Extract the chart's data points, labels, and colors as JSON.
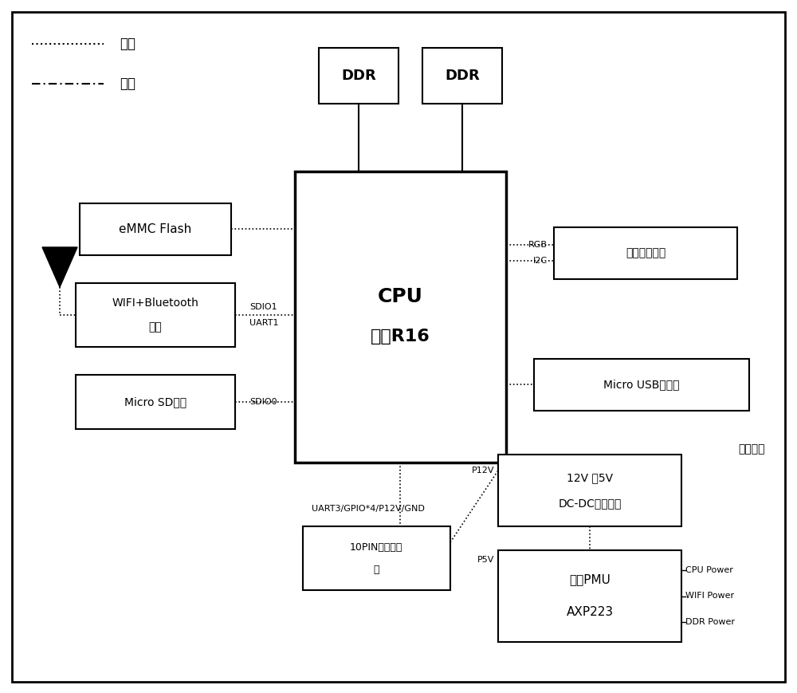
{
  "bg_color": "#ffffff",
  "legend_signal_label": "信号",
  "legend_power_label": "电源",
  "cpu_label_line1": "CPU",
  "cpu_label_line2": "全志R16",
  "ddr1_label": "DDR",
  "ddr2_label": "DDR",
  "emmc_label": "eMMC Flash",
  "wifi_label_line1": "WIFI+Bluetooth",
  "wifi_label_line2": "模块",
  "sd_label": "Micro SD卡槽",
  "display_label": "显示器连接器",
  "usb_label": "Micro USB连接器",
  "connector_label_line1": "10PIN板卡连接",
  "connector_label_line2": "器",
  "dc_label_line1": "12V 转5V",
  "dc_label_line2": "DC-DC电源模块",
  "pmu_label_line1": "全志PMU",
  "pmu_label_line2": "AXP223",
  "power_area_label": "主板电源",
  "rgb_label": "RGB",
  "i2c_label": "I2C",
  "sdio1_label": "SDIO1",
  "uart1_label": "UART1",
  "sdio0_label": "SDIO0",
  "uart3_label": "UART3/GPIO*4/P12V/GND",
  "p12v_label": "P12V",
  "p5v_label": "P5V",
  "cpu_power_label": "CPU Power",
  "wifi_power_label": "WIFI Power",
  "ddr_power_label": "DDR Power"
}
